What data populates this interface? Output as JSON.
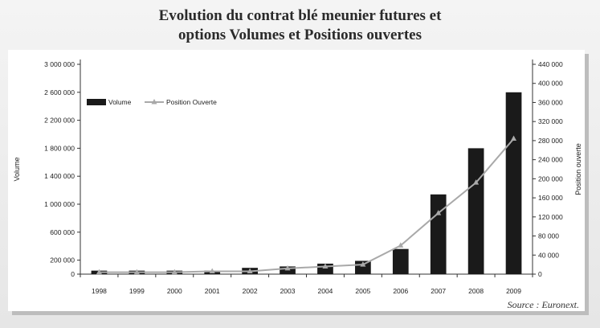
{
  "title_line1": "Evolution du contrat blé meunier futures et",
  "title_line2": "options Volumes et Positions ouvertes",
  "source": "Source : Euronext.",
  "colors": {
    "bar": "#1a1a1a",
    "line": "#a9a9a9",
    "axis": "#333333"
  },
  "chart_data": {
    "type": "bar",
    "categories": [
      "1998",
      "1999",
      "2000",
      "2001",
      "2002",
      "2003",
      "2004",
      "2005",
      "2006",
      "2007",
      "2008",
      "2009"
    ],
    "series": [
      {
        "name": "Volume",
        "type": "bar",
        "axis": "left",
        "values": [
          50000,
          50000,
          50000,
          50000,
          90000,
          110000,
          150000,
          190000,
          360000,
          1140000,
          1800000,
          2600000
        ]
      },
      {
        "name": "Position Ouverte",
        "type": "line",
        "axis": "right",
        "values": [
          4000,
          4000,
          4000,
          6000,
          6000,
          12000,
          16000,
          20000,
          60000,
          128000,
          192000,
          284000
        ]
      }
    ],
    "ylabel": "Volume",
    "y2label": "Position ouverte",
    "ylim": [
      0,
      3000000
    ],
    "y2lim": [
      0,
      440000
    ],
    "yticks": [
      "0",
      "200 000",
      "600 000",
      "1 000 000",
      "1 400 000",
      "1 800 000",
      "2 200 000",
      "2 600 000",
      "3 000 000"
    ],
    "y2ticks": [
      "0",
      "40 000",
      "80 000",
      "120 000",
      "160 000",
      "200 000",
      "240 000",
      "280 000",
      "320 000",
      "360 000",
      "400 000",
      "440 000"
    ],
    "legend": "top-left"
  }
}
